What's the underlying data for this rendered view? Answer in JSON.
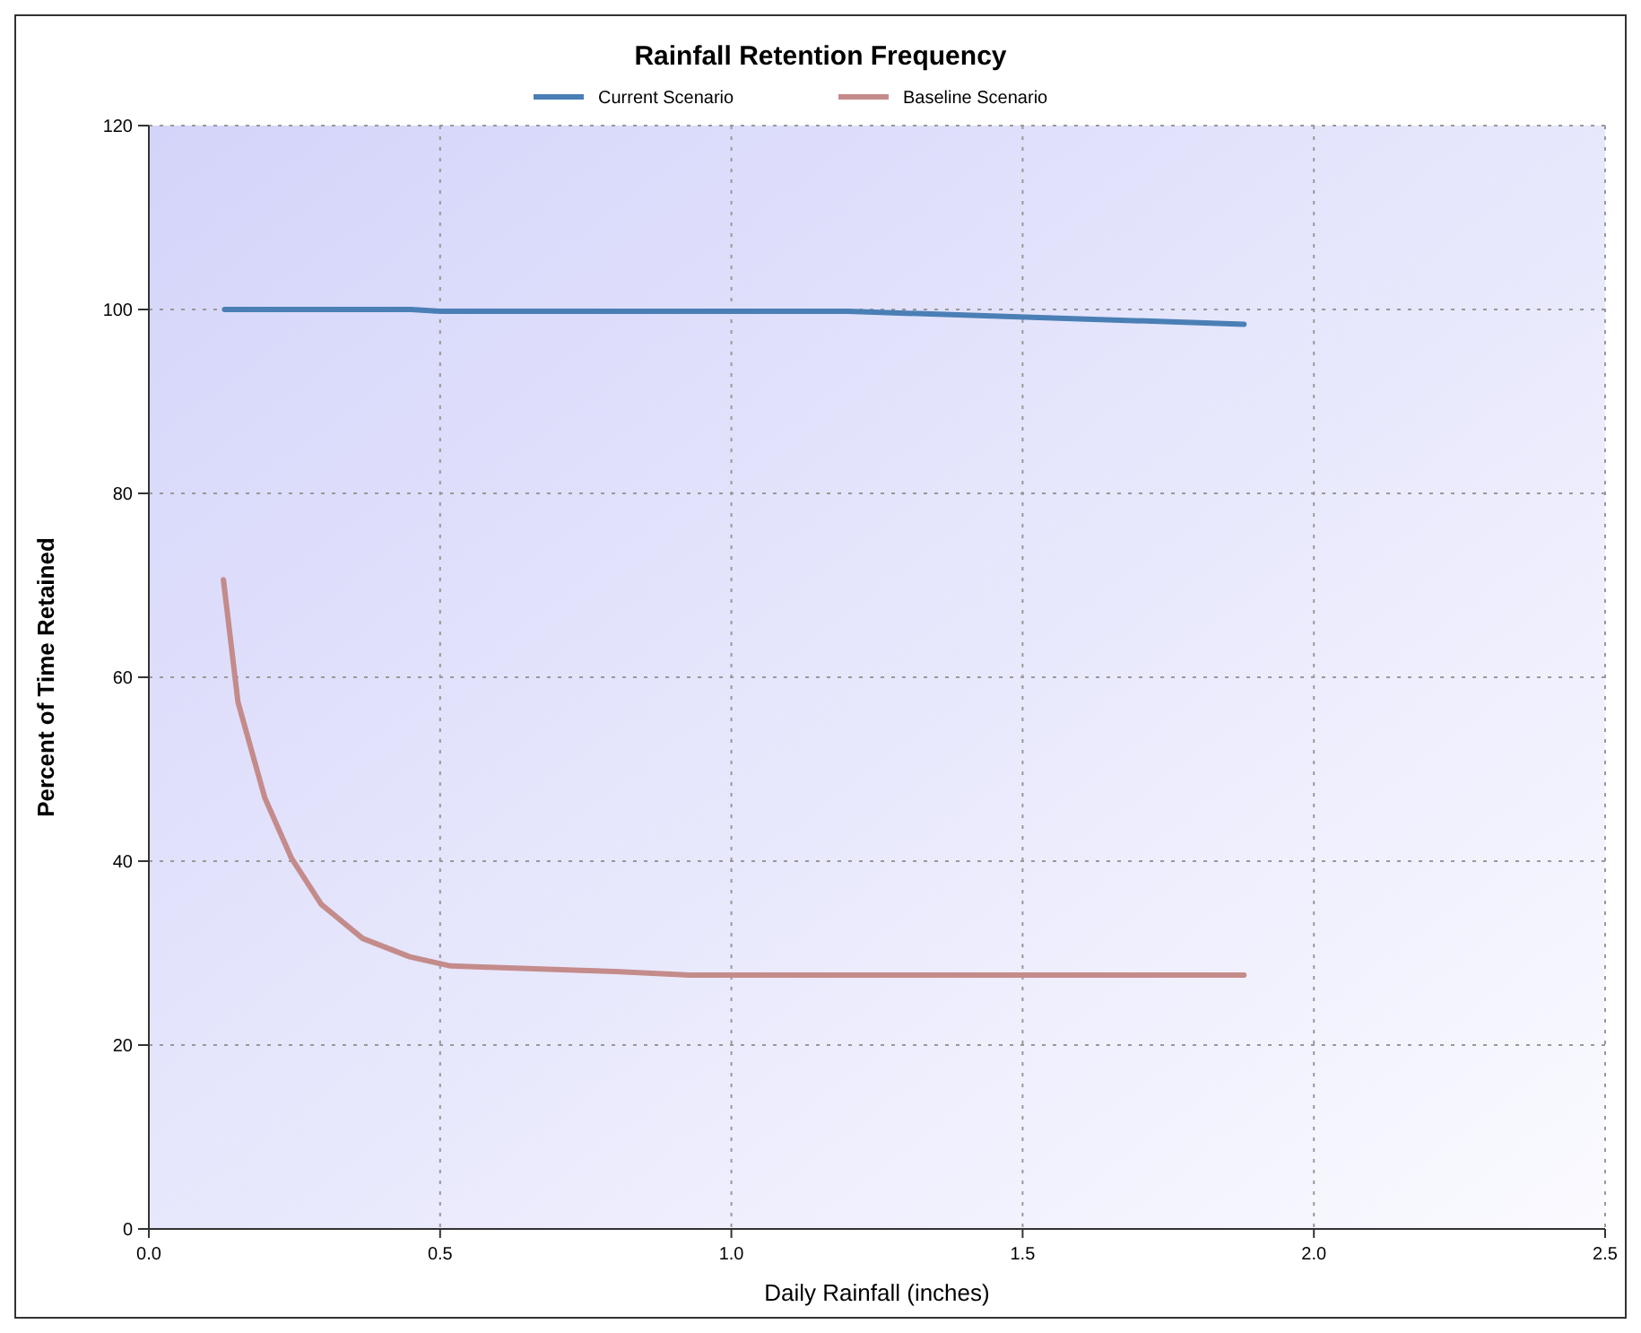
{
  "chart_data": {
    "type": "line",
    "title": "Rainfall Retention Frequency",
    "xlabel": "Daily Rainfall (inches)",
    "ylabel": "Percent of Time Retained",
    "xlim": [
      0,
      2.5
    ],
    "xticks": [
      {
        "value": 0,
        "label": "0.0"
      },
      0.5,
      {
        "value": 1,
        "label": "1.0"
      },
      1.5,
      {
        "value": 2,
        "label": "2.0"
      },
      2.5
    ],
    "ylim": [
      0,
      120
    ],
    "yticks": [
      0,
      20,
      40,
      60,
      80,
      100,
      120
    ],
    "grid": true,
    "legend": "top",
    "line_style": "solid",
    "marker": "none",
    "series": [
      {
        "name": "Current Scenario",
        "color": "#4a7fb5",
        "x": [
          0.13,
          0.45,
          0.5,
          1.2,
          1.88
        ],
        "values": [
          100,
          100,
          99.8,
          99.8,
          98.4
        ]
      },
      {
        "name": "Baseline Scenario",
        "color": "#c48b8b",
        "x": [
          0.128,
          0.153,
          0.199,
          0.245,
          0.296,
          0.367,
          0.448,
          0.518,
          0.8,
          0.93,
          1.88
        ],
        "values": [
          70.6,
          57.3,
          46.9,
          40.3,
          35.3,
          31.6,
          29.6,
          28.6,
          28,
          27.6,
          27.6
        ]
      }
    ]
  }
}
